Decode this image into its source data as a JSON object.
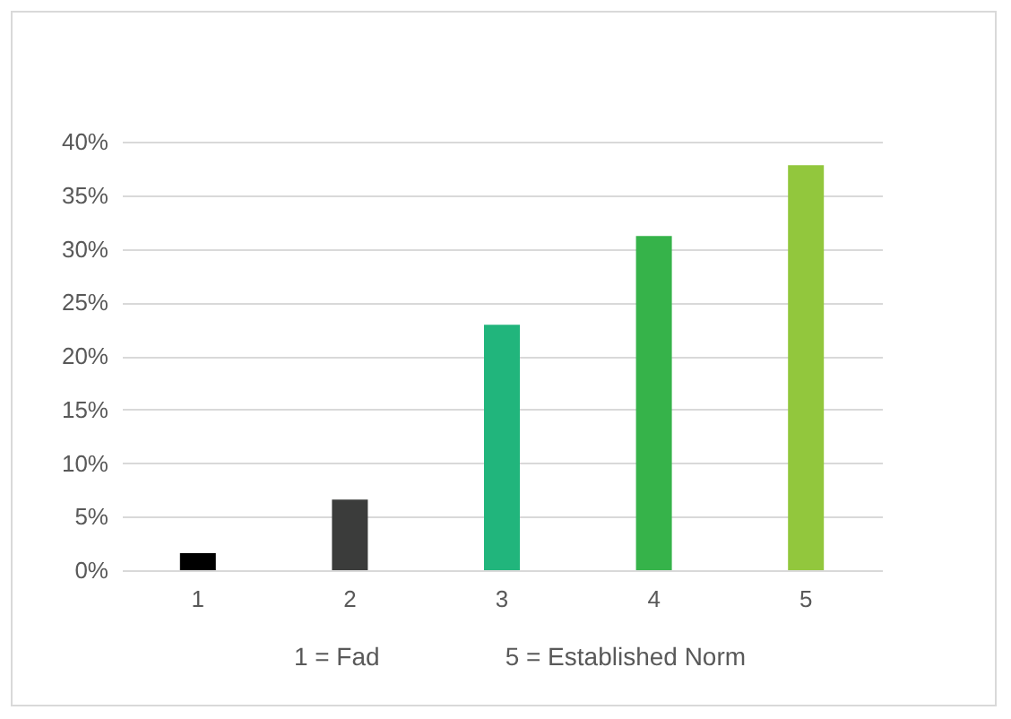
{
  "chart_data": {
    "type": "bar",
    "categories": [
      "1",
      "2",
      "3",
      "4",
      "5"
    ],
    "values": [
      1.6,
      6.6,
      22.9,
      31.2,
      37.8
    ],
    "colors": [
      "#000000",
      "#3b3c3b",
      "#21b57c",
      "#36b34a",
      "#92c73d"
    ],
    "ylim": [
      0,
      40
    ],
    "yticks": [
      {
        "value": 0,
        "label": "0%"
      },
      {
        "value": 5,
        "label": "5%"
      },
      {
        "value": 10,
        "label": "10%"
      },
      {
        "value": 15,
        "label": "15%"
      },
      {
        "value": 20,
        "label": "20%"
      },
      {
        "value": 25,
        "label": "25%"
      },
      {
        "value": 30,
        "label": "30%"
      },
      {
        "value": 35,
        "label": "35%"
      },
      {
        "value": 40,
        "label": "40%"
      }
    ],
    "grid": "y",
    "annotations": [
      "1 = Fad",
      "5 = Established Norm"
    ]
  }
}
